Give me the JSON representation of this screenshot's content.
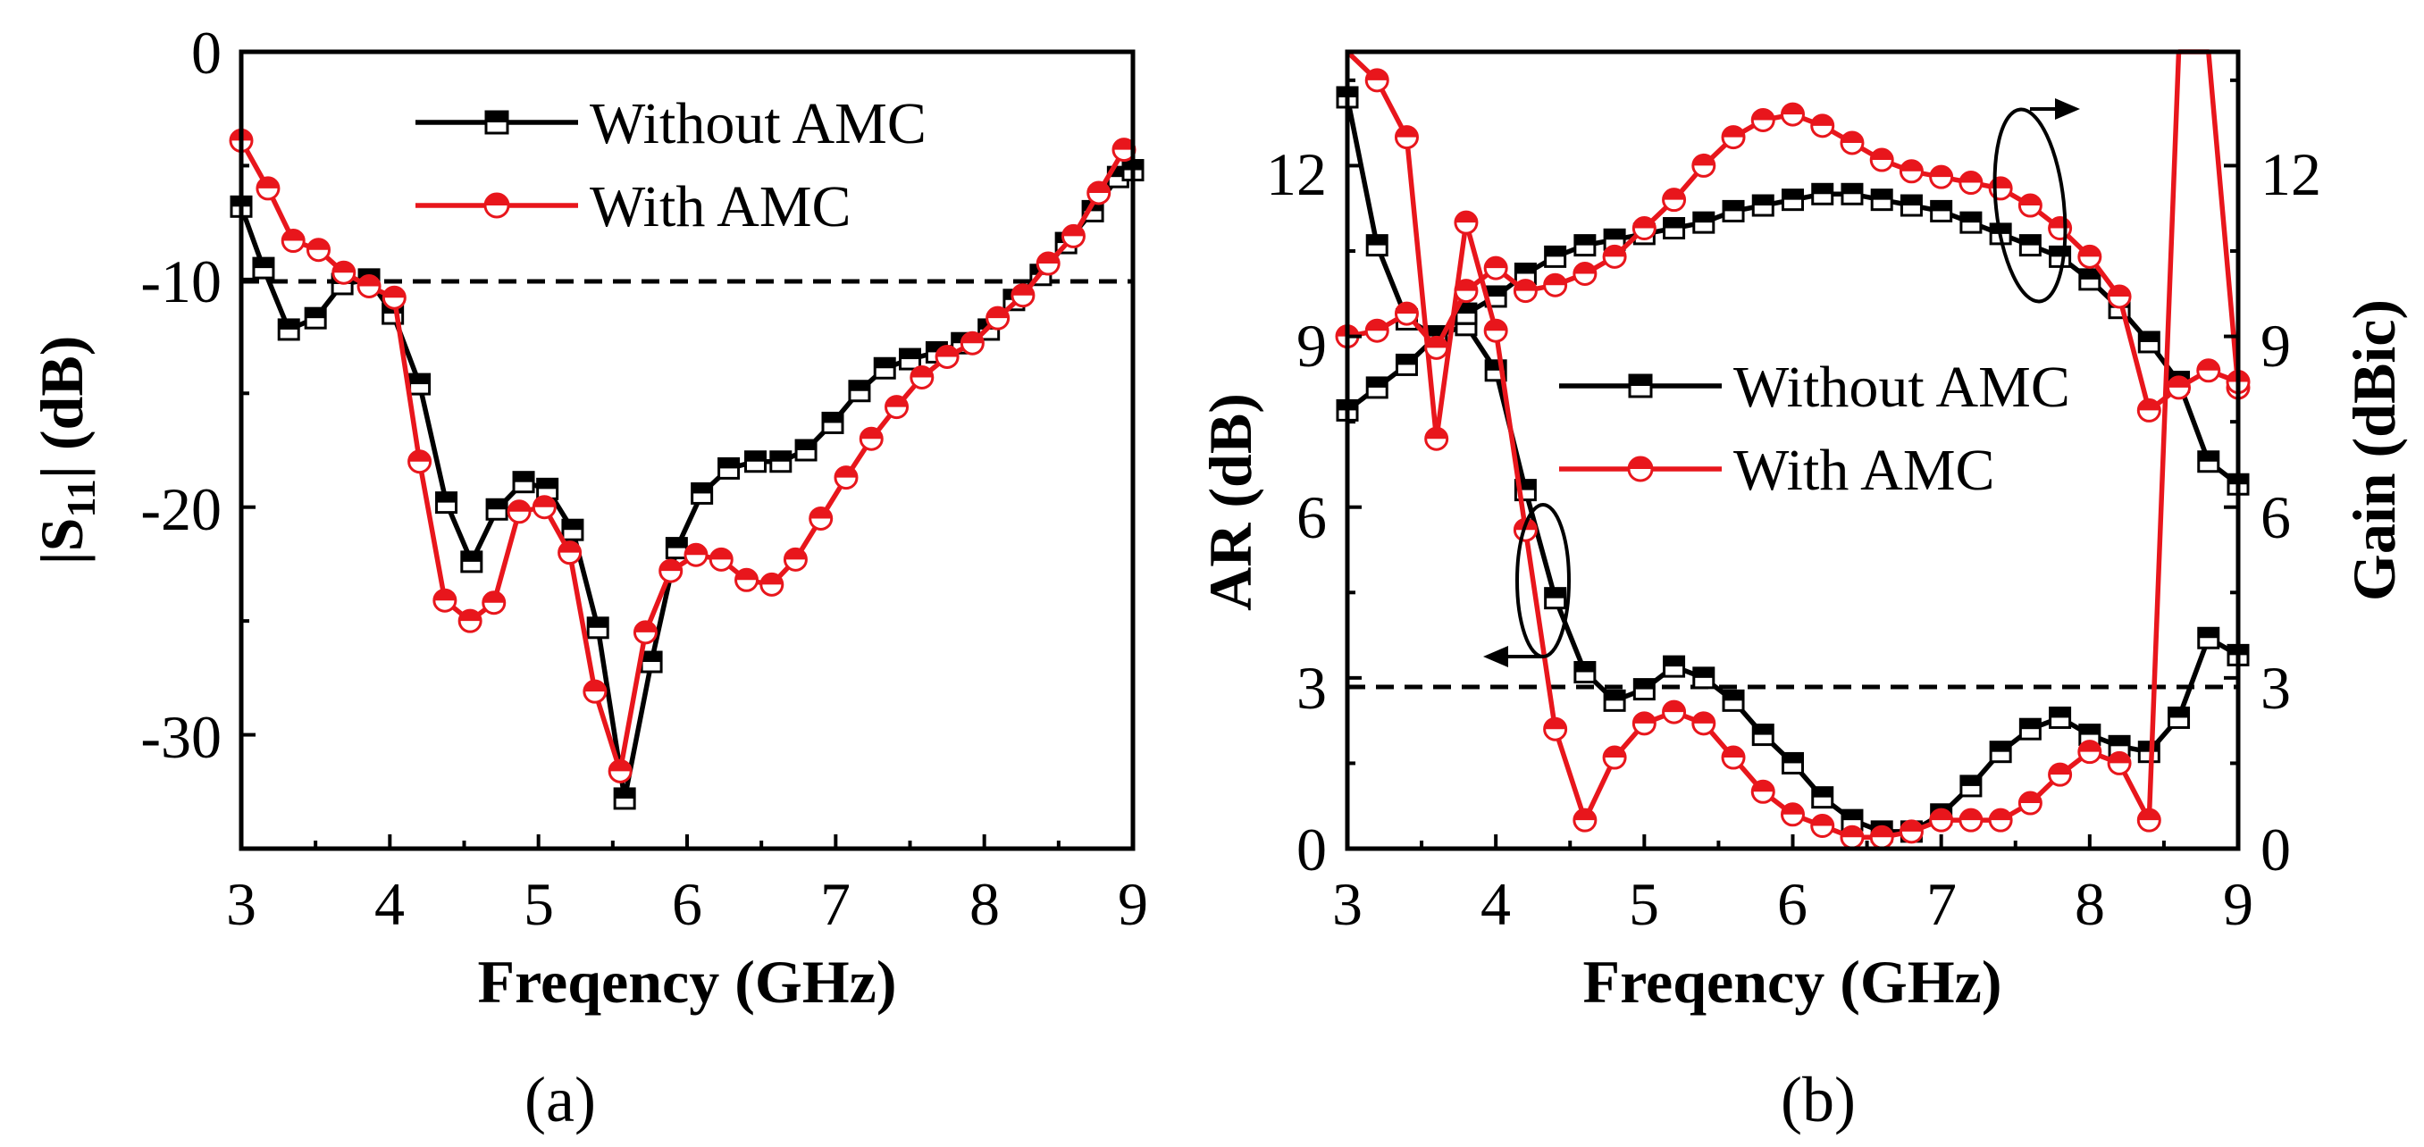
{
  "chart_data": [
    {
      "id": "a",
      "type": "line",
      "caption": "(a)",
      "xlabel": "Freqency (GHz)",
      "ylabel_main": "|S",
      "ylabel_sub": "11",
      "ylabel_rest": "| (dB)",
      "xlim": [
        3,
        9
      ],
      "ylim": [
        -35,
        0
      ],
      "xticks": [
        "3",
        "4",
        "5",
        "6",
        "7",
        "8",
        "9"
      ],
      "yticks": [
        "0",
        "-10",
        "-20",
        "-30"
      ],
      "ytick_values": [
        0,
        -10,
        -20,
        -30
      ],
      "reference_line": {
        "y": -10,
        "style": "dashed"
      },
      "legend": [
        "Without AMC",
        "With AMC"
      ],
      "series": [
        {
          "name": "Without AMC",
          "color": "#000000",
          "marker": "square",
          "x": [
            3.0,
            3.15,
            3.32,
            3.5,
            3.68,
            3.86,
            4.02,
            4.2,
            4.38,
            4.55,
            4.72,
            4.9,
            5.06,
            5.23,
            5.4,
            5.58,
            5.76,
            5.93,
            6.1,
            6.28,
            6.46,
            6.63,
            6.8,
            6.98,
            7.16,
            7.33,
            7.5,
            7.68,
            7.85,
            8.03,
            8.2,
            8.38,
            8.55,
            8.73,
            8.9,
            9.0
          ],
          "values": [
            -6.8,
            -9.5,
            -12.2,
            -11.7,
            -10.2,
            -10.0,
            -11.5,
            -14.6,
            -19.8,
            -22.4,
            -20.1,
            -18.9,
            -19.2,
            -21.0,
            -25.3,
            -32.8,
            -26.8,
            -21.8,
            -19.4,
            -18.3,
            -18.0,
            -18.0,
            -17.5,
            -16.3,
            -14.9,
            -13.9,
            -13.5,
            -13.2,
            -12.8,
            -12.2,
            -10.9,
            -9.8,
            -8.4,
            -7.0,
            -5.5,
            -5.2
          ]
        },
        {
          "name": "With AMC",
          "color": "#e8161c",
          "marker": "circle-half",
          "x": [
            3.0,
            3.18,
            3.35,
            3.52,
            3.69,
            3.86,
            4.03,
            4.2,
            4.37,
            4.54,
            4.7,
            4.87,
            5.04,
            5.21,
            5.38,
            5.55,
            5.72,
            5.89,
            6.06,
            6.23,
            6.4,
            6.57,
            6.73,
            6.9,
            7.07,
            7.24,
            7.41,
            7.58,
            7.75,
            7.92,
            8.09,
            8.26,
            8.43,
            8.6,
            8.77,
            8.94
          ],
          "values": [
            -3.9,
            -6.0,
            -8.3,
            -8.7,
            -9.7,
            -10.3,
            -10.8,
            -18.0,
            -24.1,
            -25.0,
            -24.2,
            -20.2,
            -20.0,
            -22.0,
            -28.1,
            -31.6,
            -25.5,
            -22.8,
            -22.1,
            -22.3,
            -23.2,
            -23.4,
            -22.3,
            -20.5,
            -18.7,
            -17.0,
            -15.6,
            -14.3,
            -13.4,
            -12.8,
            -11.7,
            -10.7,
            -9.3,
            -8.1,
            -6.2,
            -4.3
          ]
        }
      ]
    },
    {
      "id": "b",
      "type": "line",
      "caption": "(b)",
      "xlabel": "Freqency (GHz)",
      "ylabel": "AR (dB)",
      "ylabel_right": "Gain (dBic)",
      "xlim": [
        3,
        9
      ],
      "ylim": [
        0,
        14
      ],
      "ylim_right": [
        0,
        14
      ],
      "xticks": [
        "3",
        "4",
        "5",
        "6",
        "7",
        "8",
        "9"
      ],
      "yticks": [
        "0",
        "3",
        "6",
        "9",
        "12"
      ],
      "ytick_values": [
        0,
        3,
        6,
        9,
        12
      ],
      "yticks_right": [
        "0",
        "3",
        "6",
        "9",
        "12"
      ],
      "reference_line": {
        "y": 3,
        "style": "dashed"
      },
      "legend": [
        "Without AMC",
        "With AMC"
      ],
      "series": [
        {
          "name": "Without AMC",
          "quantity": "AR",
          "axis": "left",
          "color": "#000000",
          "marker": "square",
          "x": [
            3.0,
            3.2,
            3.4,
            3.6,
            3.8,
            4.0,
            4.2,
            4.4,
            4.6,
            4.8,
            5.0,
            5.2,
            5.4,
            5.6,
            5.8,
            6.0,
            6.2,
            6.4,
            6.6,
            6.8,
            7.0,
            7.2,
            7.4,
            7.6,
            7.8,
            8.0,
            8.2,
            8.4,
            8.6,
            8.8,
            9.0
          ],
          "values": [
            13.2,
            10.6,
            9.3,
            9.0,
            9.2,
            8.4,
            6.3,
            4.4,
            3.1,
            2.6,
            2.8,
            3.2,
            3.0,
            2.6,
            2.0,
            1.5,
            0.9,
            0.5,
            0.3,
            0.3,
            0.6,
            1.1,
            1.7,
            2.1,
            2.3,
            2.0,
            1.8,
            1.7,
            2.3,
            3.7,
            3.4
          ]
        },
        {
          "name": "Without AMC",
          "quantity": "Gain",
          "axis": "right",
          "color": "#000000",
          "marker": "square",
          "x": [
            3.0,
            3.2,
            3.4,
            3.6,
            3.8,
            4.0,
            4.2,
            4.4,
            4.6,
            4.8,
            5.0,
            5.2,
            5.4,
            5.6,
            5.8,
            6.0,
            6.2,
            6.4,
            6.6,
            6.8,
            7.0,
            7.2,
            7.4,
            7.6,
            7.8,
            8.0,
            8.2,
            8.4,
            8.6,
            8.8,
            9.0
          ],
          "values": [
            7.7,
            8.1,
            8.5,
            9.0,
            9.4,
            9.7,
            10.1,
            10.4,
            10.6,
            10.7,
            10.8,
            10.9,
            11.0,
            11.2,
            11.3,
            11.4,
            11.5,
            11.5,
            11.4,
            11.3,
            11.2,
            11.0,
            10.8,
            10.6,
            10.4,
            10.0,
            9.5,
            8.9,
            8.2,
            6.8,
            6.4
          ]
        },
        {
          "name": "With AMC",
          "quantity": "AR",
          "axis": "left",
          "color": "#e8161c",
          "marker": "circle-half",
          "x": [
            3.0,
            3.2,
            3.4,
            3.6,
            3.8,
            4.0,
            4.2,
            4.4,
            4.6,
            4.8,
            5.0,
            5.2,
            5.4,
            5.6,
            5.8,
            6.0,
            6.2,
            6.4,
            6.6,
            6.8,
            7.0,
            7.2,
            7.4,
            7.6,
            7.8,
            8.0,
            8.2,
            8.4,
            8.6,
            8.8,
            9.0
          ],
          "values": [
            14.5,
            13.5,
            12.5,
            7.2,
            11.0,
            9.1,
            5.6,
            2.1,
            0.5,
            1.6,
            2.2,
            2.4,
            2.2,
            1.6,
            1.0,
            0.6,
            0.4,
            0.2,
            0.2,
            0.3,
            0.5,
            0.5,
            0.5,
            0.8,
            1.3,
            1.7,
            1.5,
            0.5,
            14.5,
            14.5,
            8.1
          ]
        },
        {
          "name": "With AMC",
          "quantity": "Gain",
          "axis": "right",
          "color": "#e8161c",
          "marker": "circle-half",
          "x": [
            3.0,
            3.2,
            3.4,
            3.6,
            3.8,
            4.0,
            4.2,
            4.4,
            4.6,
            4.8,
            5.0,
            5.2,
            5.4,
            5.6,
            5.8,
            6.0,
            6.2,
            6.4,
            6.6,
            6.8,
            7.0,
            7.2,
            7.4,
            7.6,
            7.8,
            8.0,
            8.2,
            8.4,
            8.6,
            8.8,
            9.0
          ],
          "values": [
            9.0,
            9.1,
            9.4,
            8.8,
            9.8,
            10.2,
            9.8,
            9.9,
            10.1,
            10.4,
            10.9,
            11.4,
            12.0,
            12.5,
            12.8,
            12.9,
            12.7,
            12.4,
            12.1,
            11.9,
            11.8,
            11.7,
            11.6,
            11.3,
            10.9,
            10.4,
            9.7,
            7.7,
            8.1,
            8.4,
            8.2
          ]
        }
      ]
    }
  ]
}
